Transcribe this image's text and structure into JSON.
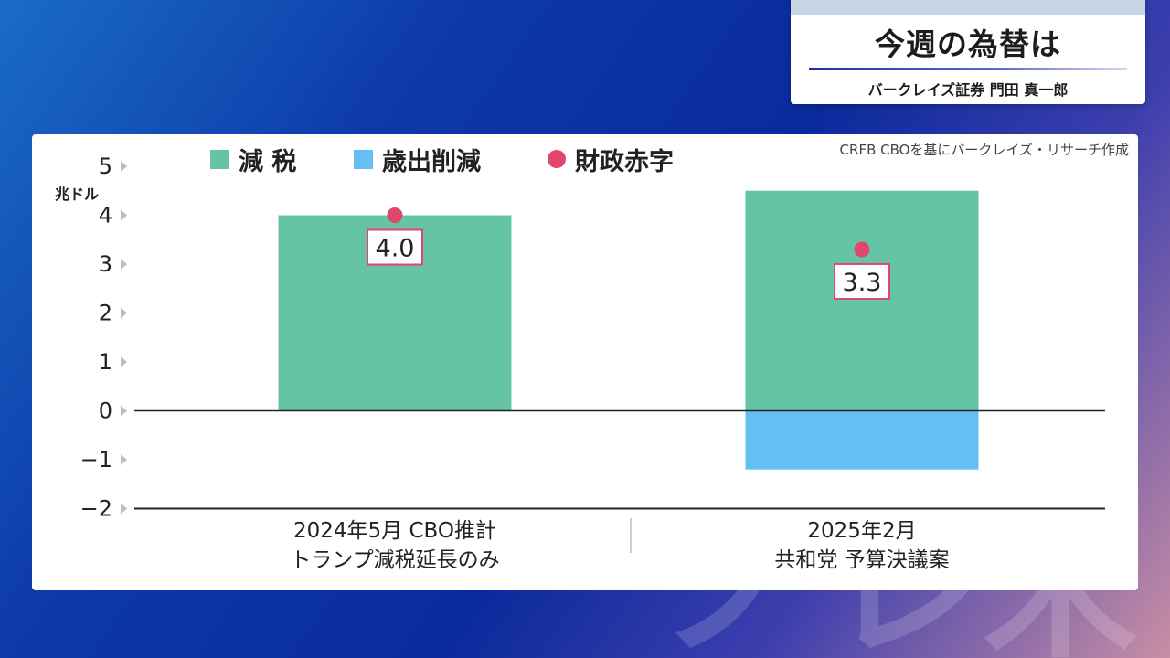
{
  "header": {
    "title": "今週の為替は",
    "byline": "バークレイズ証券 門田 真一郎"
  },
  "source_note": "CRFB CBOを基にバークレイズ・リサーチ作成",
  "legend": [
    {
      "label": "減 税",
      "color": "#66c4a6",
      "shape": "square"
    },
    {
      "label": "歳出削減",
      "color": "#66bff2",
      "shape": "square"
    },
    {
      "label": "財政赤字",
      "color": "#e0476a",
      "shape": "circle"
    }
  ],
  "chart_data": {
    "type": "bar",
    "ylabel": "兆ドル",
    "ylim": [
      -2,
      5
    ],
    "yticks": [
      5,
      4,
      3,
      2,
      1,
      0,
      -1,
      -2
    ],
    "ytick_labels": [
      "5",
      "4",
      "3",
      "2",
      "1",
      "0",
      "−1",
      "−2"
    ],
    "categories": [
      [
        "2024年5月 CBO推計",
        "トランプ減税延長のみ"
      ],
      [
        "2025年2月",
        "共和党 予算決議案"
      ]
    ],
    "series": [
      {
        "name": "減 税",
        "type": "bar",
        "stack": "main",
        "color": "#66c4a6",
        "values": [
          4.0,
          4.5
        ]
      },
      {
        "name": "歳出削減",
        "type": "bar",
        "stack": "main",
        "color": "#66bff2",
        "values": [
          0,
          -1.2
        ]
      },
      {
        "name": "財政赤字",
        "type": "point",
        "color": "#e0476a",
        "values": [
          4.0,
          3.3
        ],
        "labels": [
          "4.0",
          "3.3"
        ]
      }
    ],
    "grid": false
  }
}
